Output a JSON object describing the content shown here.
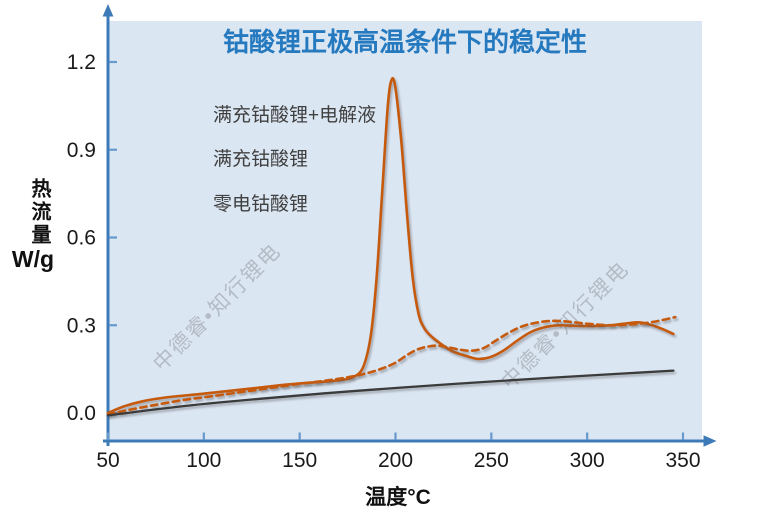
{
  "chart_data": {
    "type": "line",
    "title": "钴酸锂正极高温条件下的稳定性",
    "xlabel": "温度°C",
    "ylabel": "热流量",
    "ylabel_unit": "W/g",
    "grid": false,
    "legend_position": "top-left",
    "xlim": [
      50,
      360
    ],
    "ylim": [
      -0.02,
      1.32
    ],
    "x_ticks": [
      {
        "value": 50,
        "label": "50"
      },
      {
        "value": 100,
        "label": "100"
      },
      {
        "value": 150,
        "label": "150"
      },
      {
        "value": 200,
        "label": "200"
      },
      {
        "value": 250,
        "label": "250"
      },
      {
        "value": 300,
        "label": "300"
      },
      {
        "value": 350,
        "label": "350"
      }
    ],
    "y_ticks": [
      {
        "value": 0.0,
        "label": "0.0"
      },
      {
        "value": 0.3,
        "label": "0.3"
      },
      {
        "value": 0.6,
        "label": "0.6"
      },
      {
        "value": 0.9,
        "label": "0.9"
      },
      {
        "value": 1.2,
        "label": "1.2"
      }
    ],
    "series": [
      {
        "name": "满充钴酸锂+电解液",
        "style": "solid",
        "color": "#C55A11",
        "peak": {
          "x": 198,
          "y": 1.14
        },
        "points": [
          [
            50,
            0
          ],
          [
            58,
            0.022
          ],
          [
            68,
            0.04
          ],
          [
            80,
            0.053
          ],
          [
            95,
            0.063
          ],
          [
            110,
            0.073
          ],
          [
            125,
            0.084
          ],
          [
            140,
            0.095
          ],
          [
            152,
            0.102
          ],
          [
            163,
            0.107
          ],
          [
            172,
            0.113
          ],
          [
            178,
            0.123
          ],
          [
            183,
            0.155
          ],
          [
            187,
            0.26
          ],
          [
            190,
            0.45
          ],
          [
            193,
            0.75
          ],
          [
            196,
            1.05
          ],
          [
            198,
            1.14
          ],
          [
            200,
            1.11
          ],
          [
            203,
            0.93
          ],
          [
            206,
            0.68
          ],
          [
            209,
            0.46
          ],
          [
            212,
            0.34
          ],
          [
            215,
            0.29
          ],
          [
            219,
            0.26
          ],
          [
            224,
            0.235
          ],
          [
            230,
            0.21
          ],
          [
            237,
            0.195
          ],
          [
            243,
            0.185
          ],
          [
            249,
            0.19
          ],
          [
            256,
            0.212
          ],
          [
            263,
            0.245
          ],
          [
            270,
            0.275
          ],
          [
            277,
            0.292
          ],
          [
            285,
            0.3
          ],
          [
            294,
            0.298
          ],
          [
            303,
            0.297
          ],
          [
            312,
            0.3
          ],
          [
            320,
            0.306
          ],
          [
            327,
            0.31
          ],
          [
            333,
            0.302
          ],
          [
            339,
            0.288
          ],
          [
            345,
            0.27
          ]
        ]
      },
      {
        "name": "满充钴酸锂",
        "style": "dashed",
        "color": "#C55A11",
        "points": [
          [
            50,
            -0.005
          ],
          [
            62,
            0.012
          ],
          [
            75,
            0.028
          ],
          [
            90,
            0.045
          ],
          [
            105,
            0.058
          ],
          [
            120,
            0.072
          ],
          [
            135,
            0.086
          ],
          [
            150,
            0.1
          ],
          [
            163,
            0.11
          ],
          [
            175,
            0.122
          ],
          [
            185,
            0.136
          ],
          [
            193,
            0.152
          ],
          [
            200,
            0.172
          ],
          [
            206,
            0.198
          ],
          [
            211,
            0.216
          ],
          [
            216,
            0.226
          ],
          [
            222,
            0.23
          ],
          [
            228,
            0.224
          ],
          [
            234,
            0.216
          ],
          [
            240,
            0.213
          ],
          [
            246,
            0.222
          ],
          [
            252,
            0.246
          ],
          [
            259,
            0.274
          ],
          [
            266,
            0.296
          ],
          [
            273,
            0.308
          ],
          [
            281,
            0.315
          ],
          [
            289,
            0.313
          ],
          [
            297,
            0.307
          ],
          [
            306,
            0.302
          ],
          [
            315,
            0.3
          ],
          [
            323,
            0.303
          ],
          [
            331,
            0.308
          ],
          [
            338,
            0.316
          ],
          [
            346,
            0.328
          ]
        ]
      },
      {
        "name": "零电钴酸锂",
        "style": "solid",
        "color": "#3A3A3A",
        "points": [
          [
            50,
            -0.008
          ],
          [
            90,
            0.024
          ],
          [
            130,
            0.049
          ],
          [
            180,
            0.076
          ],
          [
            230,
            0.099
          ],
          [
            280,
            0.12
          ],
          [
            345,
            0.145
          ]
        ]
      }
    ]
  },
  "watermark": {
    "text": "中德睿•知行锂电"
  },
  "colors": {
    "title": "#2579BE",
    "axis": "#3D7AB8",
    "tick": "#6699CC",
    "plot_bg": "#DBE6F3",
    "tick_label": "#1A1A1A",
    "axis_label": "#111111",
    "legend_text": "#404040",
    "watermark": "#8C9199"
  }
}
